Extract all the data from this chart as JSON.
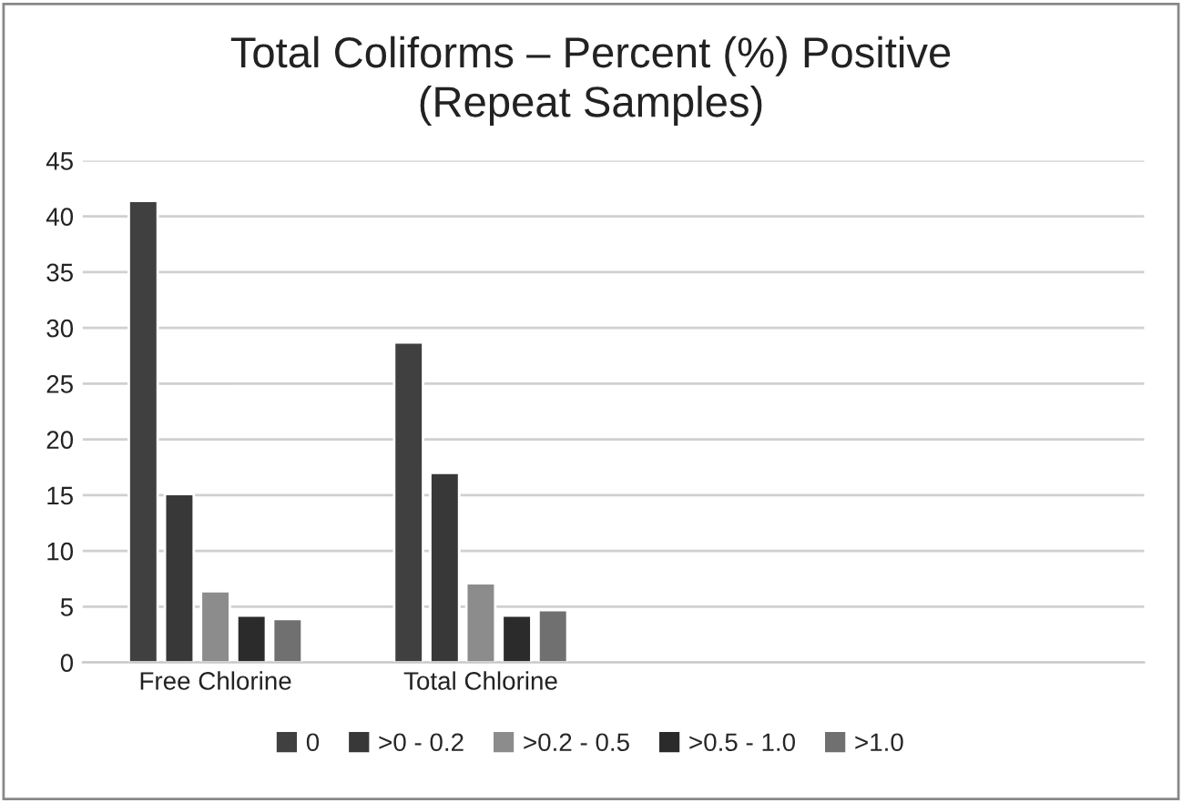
{
  "chart_data": {
    "type": "bar",
    "title": "Total Coliforms – Percent (%) Positive\n(Repeat Samples)",
    "categories": [
      "Free Chlorine",
      "Total Chlorine",
      null,
      null
    ],
    "series": [
      {
        "name": "0",
        "color": "#404040",
        "values": [
          41.4,
          28.7,
          null,
          null
        ]
      },
      {
        "name": ">0 - 0.2",
        "color": "#383838",
        "values": [
          15.1,
          17.0,
          null,
          null
        ]
      },
      {
        "name": ">0.2 - 0.5",
        "color": "#8c8c8c",
        "values": [
          6.4,
          7.1,
          null,
          null
        ]
      },
      {
        "name": ">0.5 - 1.0",
        "color": "#2b2b2b",
        "values": [
          4.2,
          4.2,
          null,
          null
        ]
      },
      {
        "name": ">1.0",
        "color": "#707070",
        "values": [
          3.9,
          4.7,
          null,
          null
        ]
      }
    ],
    "ylim": [
      0,
      45
    ],
    "yticks": [
      0,
      5,
      10,
      15,
      20,
      25,
      30,
      35,
      40,
      45
    ],
    "grid": "y",
    "legend": "bottom"
  }
}
